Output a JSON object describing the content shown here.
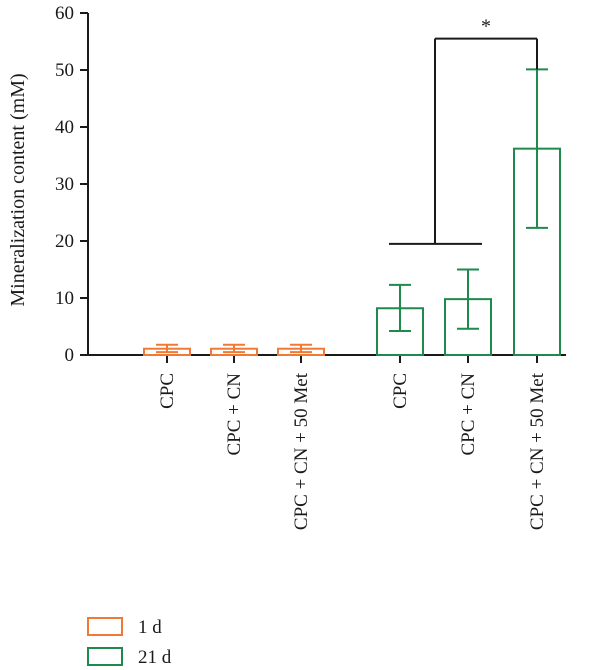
{
  "colors": {
    "series_1d": "#f07a33",
    "series_21d": "#1e8a4c",
    "axis": "#1a1a1a"
  },
  "chart_data": {
    "type": "bar",
    "title": "",
    "xlabel": "",
    "ylabel": "Mineralization content (mM)",
    "ylim": [
      0,
      60
    ],
    "yticks": [
      0,
      10,
      20,
      30,
      40,
      50,
      60
    ],
    "grid": false,
    "legend_position": "bottom-left",
    "bars": [
      {
        "category": "CPC",
        "series": "1 d",
        "value": 1.1,
        "err_low": 0.5,
        "err_high": 1.8
      },
      {
        "category": "CPC + CN",
        "series": "1 d",
        "value": 1.1,
        "err_low": 0.5,
        "err_high": 1.8
      },
      {
        "category": "CPC + CN + 50 Met",
        "series": "1 d",
        "value": 1.1,
        "err_low": 0.5,
        "err_high": 1.8
      },
      {
        "category": "CPC",
        "series": "21 d",
        "value": 8.2,
        "err_low": 4.2,
        "err_high": 12.3
      },
      {
        "category": "CPC + CN",
        "series": "21 d",
        "value": 9.8,
        "err_low": 4.6,
        "err_high": 15.0
      },
      {
        "category": "CPC + CN + 50 Met",
        "series": "21 d",
        "value": 36.2,
        "err_low": 22.3,
        "err_high": 50.1
      }
    ],
    "legend": [
      {
        "label": "1 d",
        "series": "1 d"
      },
      {
        "label": "21 d",
        "series": "21 d"
      }
    ],
    "significance": {
      "label": "*",
      "group_line_y": 19.5,
      "bracket_top_y": 55.5
    }
  }
}
